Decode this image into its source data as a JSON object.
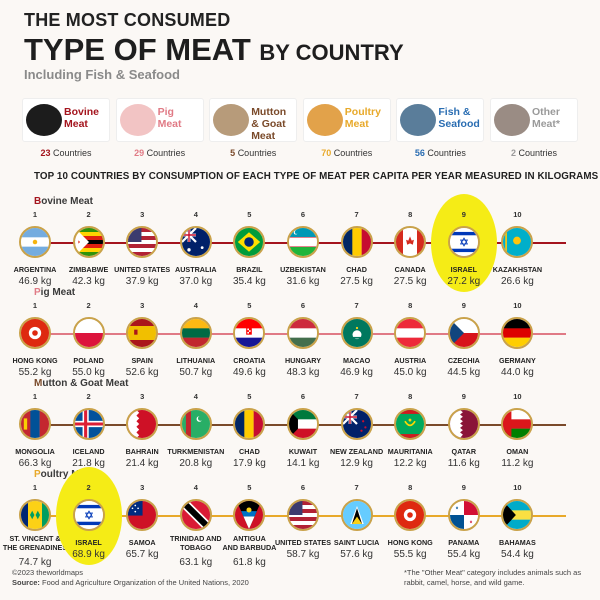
{
  "title": {
    "line1": "THE MOST CONSUMED",
    "line2_big": "TYPE OF MEAT",
    "line2_small": "BY COUNTRY",
    "subtitle": "Including Fish & Seafood"
  },
  "categories": [
    {
      "name_line1": "Bovine",
      "name_line2": "Meat",
      "count": "23",
      "count_label": "Countries",
      "box_color": "#ffffff",
      "text_color": "#a4141d",
      "icon": "cow-icon"
    },
    {
      "name_line1": "Pig",
      "name_line2": "Meat",
      "count": "29",
      "count_label": "Countries",
      "box_color": "#ffffff",
      "text_color": "#e07a85",
      "icon": "pig-icon"
    },
    {
      "name_line1": "Mutton",
      "name_line2": "& Goat Meat",
      "count": "5",
      "count_label": "Countries",
      "box_color": "#ffffff",
      "text_color": "#7a4a2a",
      "icon": "goat-icon"
    },
    {
      "name_line1": "Poultry",
      "name_line2": "Meat",
      "count": "70",
      "count_label": "Countries",
      "box_color": "#ffffff",
      "text_color": "#e8a92a",
      "icon": "chicken-icon"
    },
    {
      "name_line1": "Fish &",
      "name_line2": "Seafood",
      "count": "56",
      "count_label": "Countries",
      "box_color": "#ffffff",
      "text_color": "#2a6db2",
      "icon": "fish-icon"
    },
    {
      "name_line1": "Other",
      "name_line2": "Meat*",
      "count": "2",
      "count_label": "Countries",
      "box_color": "#ffffff",
      "text_color": "#9a9a9a",
      "icon": "rabbit-icon"
    }
  ],
  "subheading": "TOP 10 COUNTRIES BY CONSUMPTION OF EACH TYPE OF MEAT PER CAPITA PER YEAR MEASURED IN KILOGRAMS",
  "unit": "kg",
  "chart_data": {
    "type": "table",
    "series": [
      {
        "name": "Bovine Meat",
        "line_color": "#a4141d",
        "entries": [
          {
            "rank": "1",
            "country": "ARGENTINA",
            "value": 46.9,
            "value_text": "46.9 kg",
            "flag": "argentina-flag"
          },
          {
            "rank": "2",
            "country": "ZIMBABWE",
            "value": 42.3,
            "value_text": "42.3 kg",
            "flag": "zimbabwe-flag"
          },
          {
            "rank": "3",
            "country": "UNITED STATES",
            "value": 37.9,
            "value_text": "37.9 kg",
            "flag": "usa-flag"
          },
          {
            "rank": "4",
            "country": "AUSTRALIA",
            "value": 37.0,
            "value_text": "37.0 kg",
            "flag": "australia-flag"
          },
          {
            "rank": "5",
            "country": "BRAZIL",
            "value": 35.4,
            "value_text": "35.4 kg",
            "flag": "brazil-flag"
          },
          {
            "rank": "6",
            "country": "UZBEKISTAN",
            "value": 31.6,
            "value_text": "31.6 kg",
            "flag": "uzbekistan-flag"
          },
          {
            "rank": "7",
            "country": "CHAD",
            "value": 27.5,
            "value_text": "27.5 kg",
            "flag": "chad-flag"
          },
          {
            "rank": "8",
            "country": "CANADA",
            "value": 27.5,
            "value_text": "27.5 kg",
            "flag": "canada-flag"
          },
          {
            "rank": "9",
            "country": "ISRAEL",
            "value": 27.2,
            "value_text": "27.2 kg",
            "flag": "israel-flag",
            "highlight": true
          },
          {
            "rank": "10",
            "country": "KAZAKHSTAN",
            "value": 26.6,
            "value_text": "26.6 kg",
            "flag": "kazakhstan-flag"
          }
        ]
      },
      {
        "name": "Pig Meat",
        "line_color": "#e07a85",
        "entries": [
          {
            "rank": "1",
            "country": "HONG KONG",
            "value": 55.2,
            "value_text": "55.2 kg",
            "flag": "hongkong-flag"
          },
          {
            "rank": "2",
            "country": "POLAND",
            "value": 55.0,
            "value_text": "55.0 kg",
            "flag": "poland-flag"
          },
          {
            "rank": "3",
            "country": "SPAIN",
            "value": 52.6,
            "value_text": "52.6 kg",
            "flag": "spain-flag"
          },
          {
            "rank": "4",
            "country": "LITHUANIA",
            "value": 50.7,
            "value_text": "50.7 kg",
            "flag": "lithuania-flag"
          },
          {
            "rank": "5",
            "country": "CROATIA",
            "value": 49.6,
            "value_text": "49.6 kg",
            "flag": "croatia-flag"
          },
          {
            "rank": "6",
            "country": "HUNGARY",
            "value": 48.3,
            "value_text": "48.3 kg",
            "flag": "hungary-flag"
          },
          {
            "rank": "7",
            "country": "MACAO",
            "value": 46.9,
            "value_text": "46.9 kg",
            "flag": "macao-flag"
          },
          {
            "rank": "8",
            "country": "AUSTRIA",
            "value": 45.0,
            "value_text": "45.0 kg",
            "flag": "austria-flag"
          },
          {
            "rank": "9",
            "country": "CZECHIA",
            "value": 44.5,
            "value_text": "44.5 kg",
            "flag": "czechia-flag"
          },
          {
            "rank": "10",
            "country": "GERMANY",
            "value": 44.0,
            "value_text": "44.0 kg",
            "flag": "germany-flag"
          }
        ]
      },
      {
        "name": "Mutton & Goat Meat",
        "line_color": "#7a4a2a",
        "entries": [
          {
            "rank": "1",
            "country": "MONGOLIA",
            "value": 66.3,
            "value_text": "66.3 kg",
            "flag": "mongolia-flag"
          },
          {
            "rank": "2",
            "country": "ICELAND",
            "value": 21.8,
            "value_text": "21.8 kg",
            "flag": "iceland-flag"
          },
          {
            "rank": "3",
            "country": "BAHRAIN",
            "value": 21.4,
            "value_text": "21.4 kg",
            "flag": "bahrain-flag"
          },
          {
            "rank": "4",
            "country": "TURKMENISTAN",
            "value": 20.8,
            "value_text": "20.8 kg",
            "flag": "turkmenistan-flag"
          },
          {
            "rank": "5",
            "country": "CHAD",
            "value": 17.9,
            "value_text": "17.9 kg",
            "flag": "chad-flag"
          },
          {
            "rank": "6",
            "country": "KUWAIT",
            "value": 14.1,
            "value_text": "14.1 kg",
            "flag": "kuwait-flag"
          },
          {
            "rank": "7",
            "country": "NEW ZEALAND",
            "value": 12.9,
            "value_text": "12.9 kg",
            "flag": "newzealand-flag"
          },
          {
            "rank": "8",
            "country": "MAURITANIA",
            "value": 12.2,
            "value_text": "12.2 kg",
            "flag": "mauritania-flag"
          },
          {
            "rank": "9",
            "country": "QATAR",
            "value": 11.6,
            "value_text": "11.6 kg",
            "flag": "qatar-flag"
          },
          {
            "rank": "10",
            "country": "OMAN",
            "value": 11.2,
            "value_text": "11.2 kg",
            "flag": "oman-flag"
          }
        ]
      },
      {
        "name": "Poultry Meat",
        "line_color": "#e8a92a",
        "entries": [
          {
            "rank": "1",
            "country": "ST. VINCENT & THE GRENADINES",
            "country_line1": "ST. VINCENT &",
            "country_line2": "THE GRENADINES",
            "value": 74.7,
            "value_text": "74.7 kg",
            "flag": "stvincent-flag"
          },
          {
            "rank": "2",
            "country": "ISRAEL",
            "value": 68.9,
            "value_text": "68.9 kg",
            "flag": "israel-flag",
            "highlight": true
          },
          {
            "rank": "3",
            "country": "SAMOA",
            "value": 65.7,
            "value_text": "65.7 kg",
            "flag": "samoa-flag"
          },
          {
            "rank": "4",
            "country": "TRINIDAD AND TOBAGO",
            "country_line1": "TRINIDAD AND",
            "country_line2": "TOBAGO",
            "value": 63.1,
            "value_text": "63.1 kg",
            "flag": "trinidad-flag"
          },
          {
            "rank": "5",
            "country": "ANTIGUA AND BARBUDA",
            "country_line1": "ANTIGUA",
            "country_line2": "AND BARBUDA",
            "value": 61.8,
            "value_text": "61.8 kg",
            "flag": "antigua-flag"
          },
          {
            "rank": "6",
            "country": "UNITED STATES",
            "value": 58.7,
            "value_text": "58.7 kg",
            "flag": "usa-flag"
          },
          {
            "rank": "7",
            "country": "SAINT LUCIA",
            "value": 57.6,
            "value_text": "57.6 kg",
            "flag": "stlucia-flag"
          },
          {
            "rank": "8",
            "country": "HONG KONG",
            "value": 55.5,
            "value_text": "55.5 kg",
            "flag": "hongkong-flag"
          },
          {
            "rank": "9",
            "country": "PANAMA",
            "value": 55.4,
            "value_text": "55.4 kg",
            "flag": "panama-flag"
          },
          {
            "rank": "10",
            "country": "BAHAMAS",
            "value": 54.4,
            "value_text": "54.4 kg",
            "flag": "bahamas-flag"
          }
        ]
      }
    ]
  },
  "footer": {
    "copyright": "©2023 theworldmaps",
    "source_label": "Source:",
    "source_text": "Food and Agriculture Organization of the United Nations, 2020",
    "note": "*The \"Other Meat\" category includes animals such as rabbit, camel, horse, and wild game."
  },
  "colors": {
    "highlight": "#f5ec16",
    "flag_ring": "#c9a24a"
  }
}
